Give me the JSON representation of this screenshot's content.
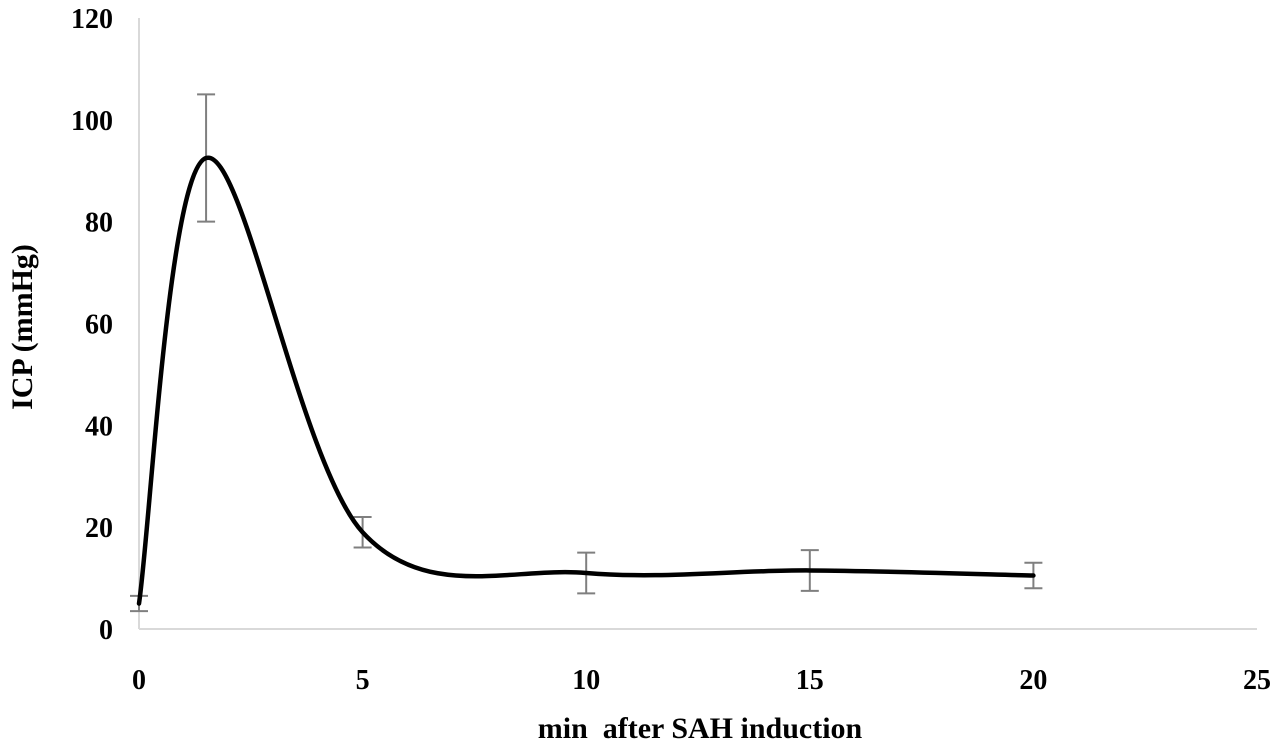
{
  "chart_data": {
    "type": "line",
    "title": "",
    "xlabel": "min  after SAH induction",
    "ylabel": "ICP (mmHg)",
    "xlim": [
      0,
      25
    ],
    "ylim": [
      0,
      120
    ],
    "xticks": [
      "0",
      "5",
      "10",
      "15",
      "20",
      "25"
    ],
    "yticks": [
      "0",
      "20",
      "40",
      "60",
      "80",
      "100",
      "120"
    ],
    "grid": false,
    "legend": "none",
    "smooth": true,
    "colors": {
      "line": "#000000",
      "error_bar": "#7f7f7f",
      "axis": "#d9d9d9"
    },
    "series": [
      {
        "x": [
          0,
          1.5,
          5,
          10,
          15,
          20
        ],
        "y": [
          5,
          92.5,
          19,
          11,
          11.5,
          10.5
        ],
        "error": [
          1.5,
          12.5,
          3,
          4,
          4,
          2.5
        ]
      }
    ]
  }
}
